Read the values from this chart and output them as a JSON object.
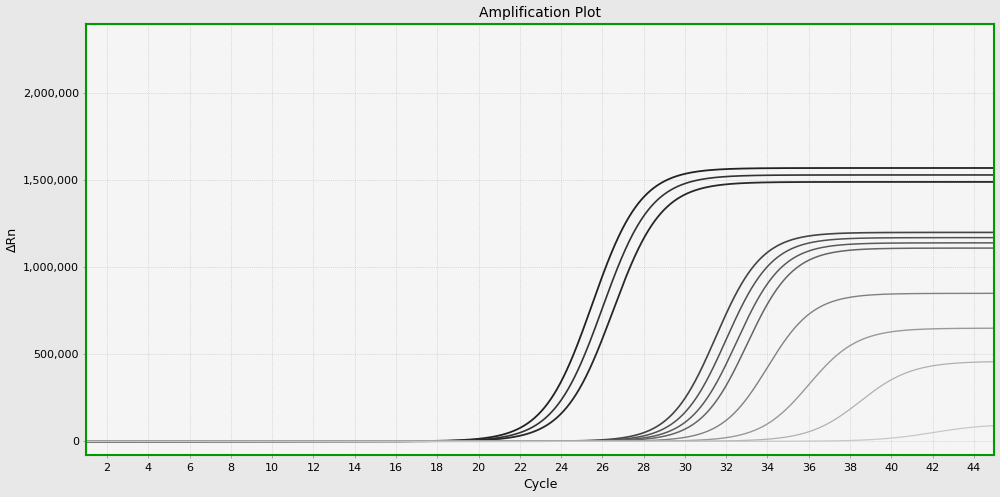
{
  "title": "Amplification Plot",
  "xlabel": "Cycle",
  "ylabel": "ΔRn",
  "xlim": [
    1,
    45
  ],
  "ylim": [
    -80000,
    2400000
  ],
  "xticks": [
    2,
    4,
    6,
    8,
    10,
    12,
    14,
    16,
    18,
    20,
    22,
    24,
    26,
    28,
    30,
    32,
    34,
    36,
    38,
    40,
    42,
    44
  ],
  "yticks": [
    0,
    500000,
    1000000,
    1500000,
    2000000
  ],
  "ytick_labels": [
    "0",
    "500,000",
    "1,000,000",
    "1,500,000",
    "2,000,000"
  ],
  "background_color": "#e8e8e8",
  "plot_bg_color": "#f5f5f5",
  "grid_color": "#c0c0c0",
  "border_color": "#009900",
  "title_fontsize": 10,
  "axis_label_fontsize": 9,
  "tick_fontsize": 8,
  "curves": [
    {
      "Ct": 25.5,
      "plateau": 1570000,
      "color": "#222222",
      "lw": 1.3,
      "k": 0.85
    },
    {
      "Ct": 26.0,
      "plateau": 1530000,
      "color": "#333333",
      "lw": 1.2,
      "k": 0.85
    },
    {
      "Ct": 26.5,
      "plateau": 1490000,
      "color": "#282828",
      "lw": 1.3,
      "k": 0.85
    },
    {
      "Ct": 31.5,
      "plateau": 1200000,
      "color": "#444444",
      "lw": 1.2,
      "k": 0.9
    },
    {
      "Ct": 32.0,
      "plateau": 1170000,
      "color": "#505050",
      "lw": 1.1,
      "k": 0.9
    },
    {
      "Ct": 32.5,
      "plateau": 1140000,
      "color": "#5a5a5a",
      "lw": 1.1,
      "k": 0.9
    },
    {
      "Ct": 33.0,
      "plateau": 1110000,
      "color": "#656565",
      "lw": 1.1,
      "k": 0.9
    },
    {
      "Ct": 34.0,
      "plateau": 850000,
      "color": "#808080",
      "lw": 1.0,
      "k": 0.9
    },
    {
      "Ct": 36.0,
      "plateau": 650000,
      "color": "#999999",
      "lw": 1.0,
      "k": 0.85
    },
    {
      "Ct": 38.5,
      "plateau": 460000,
      "color": "#b0b0b0",
      "lw": 0.9,
      "k": 0.8
    },
    {
      "Ct": 42.0,
      "plateau": 100000,
      "color": "#c8c8c8",
      "lw": 0.9,
      "k": 0.75
    }
  ]
}
